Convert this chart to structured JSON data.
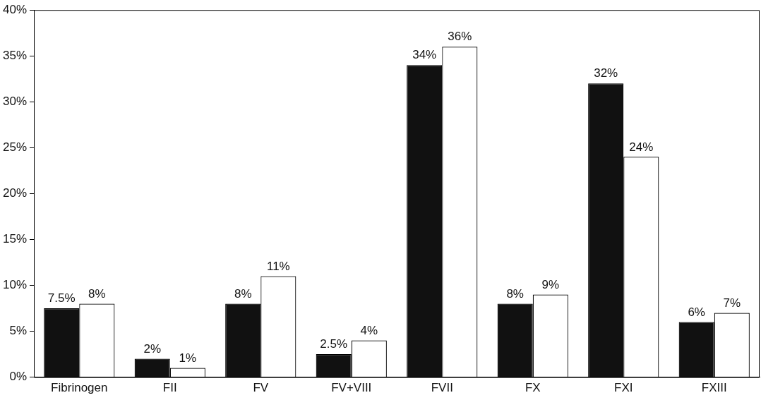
{
  "chart_data": {
    "type": "bar",
    "categories": [
      "Fibrinogen",
      "FII",
      "FV",
      "FV+VIII",
      "FVII",
      "FX",
      "FXI",
      "FXIII"
    ],
    "series": [
      {
        "color": "#111111",
        "values": [
          7.5,
          2,
          8,
          2.5,
          34,
          8,
          32,
          6
        ],
        "value_labels": [
          "7.5%",
          "2%",
          "8%",
          "2.5%",
          "34%",
          "8%",
          "32%",
          "6%"
        ]
      },
      {
        "color": "#ffffff",
        "values": [
          8,
          1,
          11,
          4,
          36,
          9,
          24,
          7
        ],
        "value_labels": [
          "8%",
          "1%",
          "11%",
          "4%",
          "36%",
          "9%",
          "24%",
          "7%"
        ]
      }
    ],
    "ylim": [
      0,
      40
    ],
    "yticks": [
      {
        "value": 0,
        "label": "0%"
      },
      {
        "value": 5,
        "label": "5%"
      },
      {
        "value": 10,
        "label": "10%"
      },
      {
        "value": 15,
        "label": "15%"
      },
      {
        "value": 20,
        "label": "20%"
      },
      {
        "value": 25,
        "label": "25%"
      },
      {
        "value": 30,
        "label": "30%"
      },
      {
        "value": 35,
        "label": "35%"
      },
      {
        "value": 40,
        "label": "40%"
      }
    ],
    "grid": false,
    "legend": false
  }
}
